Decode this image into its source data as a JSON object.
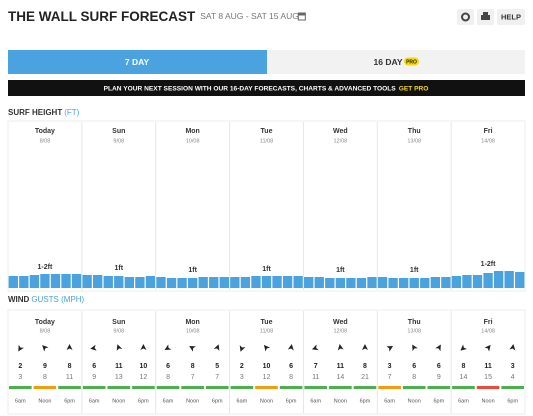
{
  "header": {
    "title": "THE WALL SURF FORECAST",
    "date_range": "SAT 8 AUG - SAT 15 AUG",
    "help": "HELP"
  },
  "tabs": [
    {
      "label": "7 DAY"
    },
    {
      "label": "16 DAY",
      "badge": "PRO"
    }
  ],
  "banner": {
    "text": "PLAN YOUR NEXT SESSION WITH OUR 16-DAY FORECASTS, CHARTS & ADVANCED TOOLS",
    "link": "GET PRO"
  },
  "surf": {
    "title": "SURF HEIGHT",
    "unit": "(FT)",
    "color": "#4aa3df",
    "days": [
      {
        "day": "Today",
        "date": "8/08",
        "label": "1-2ft",
        "heights": [
          1.2,
          1.2,
          1.3,
          1.4,
          1.4,
          1.4,
          1.4
        ]
      },
      {
        "day": "Sun",
        "date": "9/08",
        "label": "1ft",
        "heights": [
          1.3,
          1.3,
          1.2,
          1.2,
          1.1,
          1.1,
          1.2
        ]
      },
      {
        "day": "Mon",
        "date": "10/08",
        "label": "1ft",
        "heights": [
          1.1,
          1.0,
          1.0,
          1.0,
          1.1,
          1.1,
          1.1
        ]
      },
      {
        "day": "Tue",
        "date": "11/08",
        "label": "1ft",
        "heights": [
          1.1,
          1.1,
          1.2,
          1.2,
          1.2,
          1.2,
          1.2
        ]
      },
      {
        "day": "Wed",
        "date": "12/08",
        "label": "1ft",
        "heights": [
          1.1,
          1.1,
          1.0,
          1.0,
          1.0,
          1.0,
          1.1
        ]
      },
      {
        "day": "Thu",
        "date": "13/08",
        "label": "1ft",
        "heights": [
          1.1,
          1.0,
          1.0,
          1.0,
          1.0,
          1.1,
          1.1
        ]
      },
      {
        "day": "Fri",
        "date": "14/08",
        "label": "1-2ft",
        "heights": [
          1.2,
          1.3,
          1.3,
          1.5,
          1.7,
          1.7,
          1.6
        ]
      }
    ]
  },
  "wind": {
    "title": "WIND",
    "unit": "GUSTS (MPH)",
    "days": [
      {
        "day": "Today",
        "date": "8/08",
        "slots": [
          {
            "time": "6am",
            "speed": 2,
            "gust": 3,
            "direction": 210,
            "color": "#4caf50"
          },
          {
            "time": "Noon",
            "speed": 9,
            "gust": 8,
            "direction": 315,
            "color": "#f39c12"
          },
          {
            "time": "6pm",
            "speed": 8,
            "gust": 11,
            "direction": 0,
            "color": "#4caf50"
          }
        ]
      },
      {
        "day": "Sun",
        "date": "9/08",
        "slots": [
          {
            "time": "6am",
            "speed": 6,
            "gust": 9,
            "direction": 260,
            "color": "#4caf50"
          },
          {
            "time": "Noon",
            "speed": 11,
            "gust": 13,
            "direction": 340,
            "color": "#4caf50"
          },
          {
            "time": "6pm",
            "speed": 10,
            "gust": 12,
            "direction": 0,
            "color": "#4caf50"
          }
        ]
      },
      {
        "day": "Mon",
        "date": "10/08",
        "slots": [
          {
            "time": "6am",
            "speed": 6,
            "gust": 8,
            "direction": 240,
            "color": "#4caf50"
          },
          {
            "time": "Noon",
            "speed": 8,
            "gust": 7,
            "direction": 300,
            "color": "#4caf50"
          },
          {
            "time": "6pm",
            "speed": 5,
            "gust": 7,
            "direction": 20,
            "color": "#4caf50"
          }
        ]
      },
      {
        "day": "Tue",
        "date": "11/08",
        "slots": [
          {
            "time": "6am",
            "speed": 2,
            "gust": 3,
            "direction": 200,
            "color": "#4caf50"
          },
          {
            "time": "Noon",
            "speed": 10,
            "gust": 12,
            "direction": 320,
            "color": "#f39c12"
          },
          {
            "time": "6pm",
            "speed": 6,
            "gust": 8,
            "direction": 10,
            "color": "#4caf50"
          }
        ]
      },
      {
        "day": "Wed",
        "date": "12/08",
        "slots": [
          {
            "time": "6am",
            "speed": 7,
            "gust": 11,
            "direction": 250,
            "color": "#4caf50"
          },
          {
            "time": "Noon",
            "speed": 11,
            "gust": 14,
            "direction": 350,
            "color": "#4caf50"
          },
          {
            "time": "6pm",
            "speed": 8,
            "gust": 21,
            "direction": 0,
            "color": "#4caf50"
          }
        ]
      },
      {
        "day": "Thu",
        "date": "13/08",
        "slots": [
          {
            "time": "6am",
            "speed": 3,
            "gust": 7,
            "direction": 60,
            "color": "#f39c12"
          },
          {
            "time": "Noon",
            "speed": 6,
            "gust": 8,
            "direction": 330,
            "color": "#4caf50"
          },
          {
            "time": "6pm",
            "speed": 6,
            "gust": 9,
            "direction": 30,
            "color": "#4caf50"
          }
        ]
      },
      {
        "day": "Fri",
        "date": "14/08",
        "slots": [
          {
            "time": "6am",
            "speed": 8,
            "gust": 14,
            "direction": 230,
            "color": "#4caf50"
          },
          {
            "time": "Noon",
            "speed": 11,
            "gust": 15,
            "direction": 40,
            "color": "#e74c3c"
          },
          {
            "time": "6pm",
            "speed": 3,
            "gust": 4,
            "direction": 10,
            "color": "#4caf50"
          }
        ]
      }
    ]
  }
}
